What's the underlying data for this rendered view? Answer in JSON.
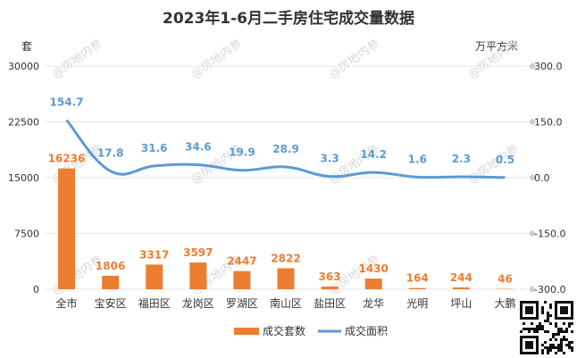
{
  "chart_data": {
    "type": "bar+line",
    "title": "2023年1-6月二手房住宅成交量数据",
    "left_unit": "套",
    "right_unit": "万平方米",
    "categories": [
      "全市",
      "宝安区",
      "福田区",
      "龙岗区",
      "罗湖区",
      "南山区",
      "盐田区",
      "龙华",
      "光明",
      "坪山",
      "大鹏"
    ],
    "series": [
      {
        "name": "成交套数",
        "type": "bar",
        "axis": "left",
        "values": [
          16236,
          1806,
          3317,
          3597,
          2447,
          2822,
          363,
          1430,
          164,
          244,
          46
        ]
      },
      {
        "name": "成交面积",
        "type": "line",
        "axis": "right",
        "values": [
          154.7,
          17.8,
          31.6,
          34.6,
          19.9,
          28.9,
          3.3,
          14.2,
          1.6,
          2.3,
          0.5
        ]
      }
    ],
    "left_axis": {
      "ticks": [
        "0",
        "7500",
        "15000",
        "22500",
        "30000"
      ],
      "range": [
        0,
        30000
      ]
    },
    "right_axis": {
      "ticks": [
        "300.0",
        "150.0",
        "0.0",
        "-150.0",
        "-300.0"
      ],
      "range": [
        -300,
        300
      ]
    },
    "legend_position": "bottom",
    "colors": {
      "bar": "#ED7D31",
      "line": "#5B9BD5"
    }
  },
  "watermark": "@房地内参"
}
